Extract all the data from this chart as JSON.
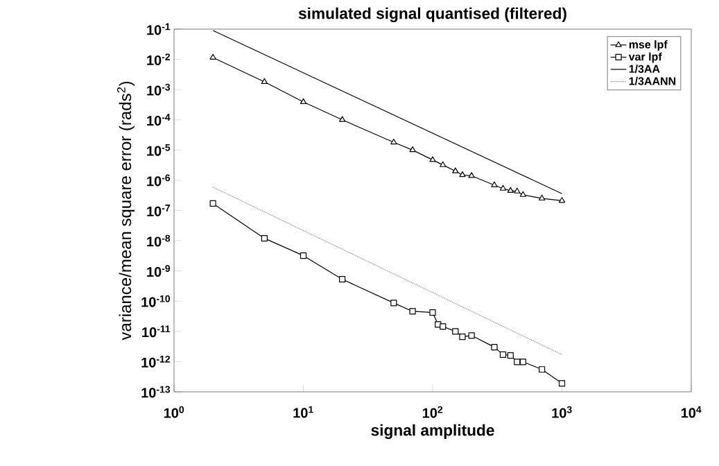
{
  "chart_data": {
    "type": "line",
    "title": "simulated signal quantised (filtered)",
    "xlabel": "signal amplitude",
    "ylabel": "variance/mean square error (rads$^{2}$)",
    "log": "xy",
    "grid": false,
    "legend": "top right",
    "xlim": [
      1,
      10000
    ],
    "ylim": [
      1e-13,
      0.1
    ],
    "xticks": [
      {
        "value": 1,
        "label": "10$^{0}$"
      },
      {
        "value": 10,
        "label": "10$^{1}$"
      },
      {
        "value": 100,
        "label": "10$^{2}$"
      },
      {
        "value": 1000,
        "label": "10$^{3}$"
      },
      {
        "value": 10000,
        "label": "10$^{4}$"
      }
    ],
    "yticks": [
      {
        "value": 0.1,
        "label": "10$^{-1}$"
      },
      {
        "value": 0.01,
        "label": "10$^{-2}$"
      },
      {
        "value": 0.001,
        "label": "10$^{-3}$"
      },
      {
        "value": 0.0001,
        "label": "10$^{-4}$"
      },
      {
        "value": 1e-05,
        "label": "10$^{-5}$"
      },
      {
        "value": 1e-06,
        "label": "10$^{-6}$"
      },
      {
        "value": 1e-07,
        "label": "10$^{-7}$"
      },
      {
        "value": 1e-08,
        "label": "10$^{-8}$"
      },
      {
        "value": 1e-09,
        "label": "10$^{-9}$"
      },
      {
        "value": 1e-10,
        "label": "10$^{-10}$"
      },
      {
        "value": 1e-11,
        "label": "10$^{-11}$"
      },
      {
        "value": 1e-12,
        "label": "10$^{-12}$"
      },
      {
        "value": 1e-13,
        "label": "10$^{-13}$"
      }
    ],
    "series": [
      {
        "name": "mse   lpf",
        "color": "#000000",
        "marker": "triangle",
        "line_style": "solid",
        "x": [
          2,
          5,
          10,
          20,
          50,
          70,
          100,
          120,
          150,
          170,
          200,
          300,
          350,
          400,
          450,
          500,
          700,
          1000
        ],
        "values": [
          0.0115,
          0.0018,
          0.00039,
          0.0001,
          1.8e-05,
          1e-05,
          4.7e-06,
          3.2e-06,
          2e-06,
          1.5e-06,
          1.4e-06,
          6.9e-07,
          5.3e-07,
          4.5e-07,
          4.3e-07,
          3.3e-07,
          2.5e-07,
          2.1e-07
        ]
      },
      {
        "name": "var  lpf",
        "color": "#000000",
        "marker": "square",
        "line_style": "solid",
        "x": [
          2,
          5,
          10,
          20,
          50,
          70,
          100,
          110,
          120,
          150,
          170,
          200,
          300,
          350,
          400,
          450,
          500,
          700,
          1000
        ],
        "values": [
          1.7e-07,
          1.2e-08,
          3.2e-09,
          5.3e-10,
          8.7e-11,
          4.6e-11,
          4.2e-11,
          1.7e-11,
          1.45e-11,
          1e-11,
          6.6e-12,
          7.3e-12,
          3e-12,
          1.7e-12,
          1.6e-12,
          9.8e-13,
          9.8e-13,
          5.5e-13,
          1.9e-13
        ]
      },
      {
        "name": "1/3AA",
        "color": "#000000",
        "marker": "none",
        "line_style": "solid",
        "x": [
          2,
          1000
        ],
        "values": [
          0.09,
          3.6e-07
        ]
      },
      {
        "name": "1/3AANN",
        "color": "#808080",
        "marker": "none",
        "line_style": "dotted",
        "x": [
          2,
          1000
        ],
        "values": [
          5.9e-07,
          1.7e-12
        ]
      }
    ]
  }
}
